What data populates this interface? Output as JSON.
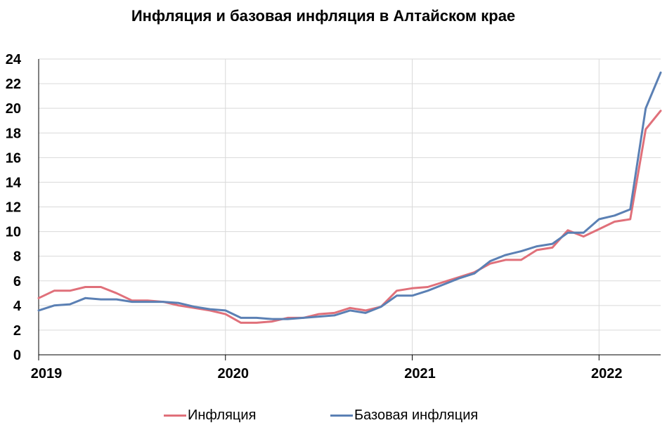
{
  "chart_data": {
    "type": "line",
    "title": "Инфляция и базовая инфляция в Алтайском крае",
    "xlabel": "",
    "ylabel": "",
    "xlim": [
      2019.0,
      2022.33
    ],
    "ylim": [
      0,
      24
    ],
    "yticks": [
      0,
      2,
      4,
      6,
      8,
      10,
      12,
      14,
      16,
      18,
      20,
      22,
      24
    ],
    "xticks": [
      {
        "value": 2019,
        "label": "2019"
      },
      {
        "value": 2020,
        "label": "2020"
      },
      {
        "value": 2021,
        "label": "2021"
      },
      {
        "value": 2022,
        "label": "2022"
      }
    ],
    "grid": true,
    "legend": "bottom",
    "series": [
      {
        "name": "Инфляция",
        "color": "#e0707a",
        "x": [
          2019.0,
          2019.083,
          2019.167,
          2019.25,
          2019.333,
          2019.417,
          2019.5,
          2019.583,
          2019.667,
          2019.75,
          2019.833,
          2019.917,
          2020.0,
          2020.083,
          2020.167,
          2020.25,
          2020.333,
          2020.417,
          2020.5,
          2020.583,
          2020.667,
          2020.75,
          2020.833,
          2020.917,
          2021.0,
          2021.083,
          2021.167,
          2021.25,
          2021.333,
          2021.417,
          2021.5,
          2021.583,
          2021.667,
          2021.75,
          2021.833,
          2021.917,
          2022.0,
          2022.083,
          2022.167,
          2022.25
        ],
        "values": [
          4.6,
          5.2,
          5.2,
          5.5,
          5.5,
          5.0,
          4.4,
          4.4,
          4.3,
          4.0,
          3.8,
          3.6,
          3.3,
          2.6,
          2.6,
          2.7,
          3.0,
          3.0,
          3.3,
          3.4,
          3.8,
          3.6,
          3.9,
          5.2,
          5.4,
          5.5,
          5.9,
          6.3,
          6.7,
          7.4,
          7.7,
          7.7,
          8.5,
          8.7,
          10.1,
          9.6,
          10.2,
          10.8,
          11.0,
          18.3
        ],
        "values_tail": []
      },
      {
        "name": "Базовая инфляция",
        "color": "#5b80b4",
        "x": [
          2019.0,
          2019.083,
          2019.167,
          2019.25,
          2019.333,
          2019.417,
          2019.5,
          2019.583,
          2019.667,
          2019.75,
          2019.833,
          2019.917,
          2020.0,
          2020.083,
          2020.167,
          2020.25,
          2020.333,
          2020.417,
          2020.5,
          2020.583,
          2020.667,
          2020.75,
          2020.833,
          2020.917,
          2021.0,
          2021.083,
          2021.167,
          2021.25,
          2021.333,
          2021.417,
          2021.5,
          2021.583,
          2021.667,
          2021.75,
          2021.833,
          2021.917,
          2022.0,
          2022.083,
          2022.167,
          2022.25
        ],
        "values": [
          3.6,
          4.0,
          4.1,
          4.6,
          4.5,
          4.5,
          4.3,
          4.3,
          4.3,
          4.2,
          3.9,
          3.7,
          3.6,
          3.0,
          3.0,
          2.9,
          2.9,
          3.0,
          3.1,
          3.2,
          3.6,
          3.4,
          3.9,
          4.8,
          4.8,
          5.2,
          5.7,
          6.2,
          6.6,
          7.6,
          8.1,
          8.4,
          8.8,
          9.0,
          9.9,
          9.9,
          11.0,
          11.3,
          11.8,
          20.0
        ],
        "values_tail": []
      }
    ]
  }
}
